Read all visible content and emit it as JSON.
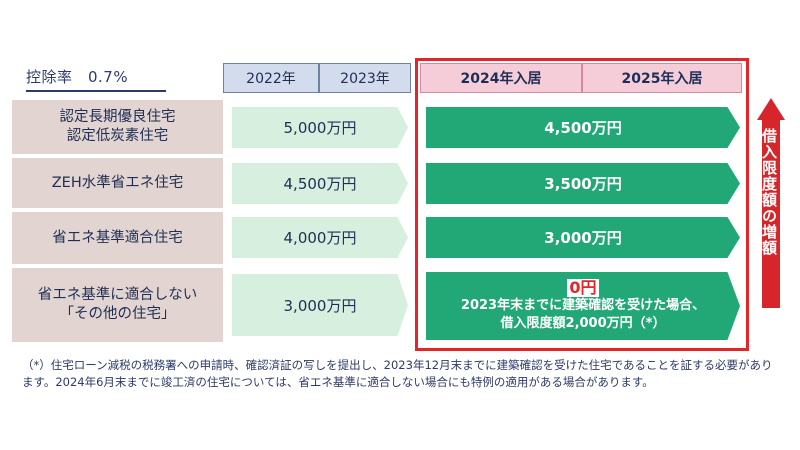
{
  "deduction_rate": "控除率　0.7%",
  "years": [
    "2022年",
    "2023年",
    "2024年入居",
    "2025年入居"
  ],
  "rows": [
    {
      "label": "認定長期優良住宅\n認定低炭素住宅",
      "old_limit": "5,000万円",
      "new_limit": "4,500万円"
    },
    {
      "label": "ZEH水準省エネ住宅",
      "old_limit": "4,500万円",
      "new_limit": "3,500万円"
    },
    {
      "label": "省エネ基準適合住宅",
      "old_limit": "4,000万円",
      "new_limit": "3,000万円"
    },
    {
      "label": "省エネ基準に適合しない\n「その他の住宅」",
      "old_limit": "3,000万円",
      "new_limit": "0円",
      "new_note_1": "2023年末までに建築確認を受けた場合、",
      "new_note_2": "借入限度額2,000万円（*）"
    }
  ],
  "side_label": "借入限度額の増額",
  "footnote": "（*）住宅ローン減税の税務署への申請時、確認済証の写しを提出し、2023年12月末までに建築確認を受けた住宅であることを証する必要があります。2024年6月末までに竣工済の住宅については、省エネ基準に適合しない場合にも特例の適用がある場合があります。",
  "colors": {
    "accent_red": "#e3262a",
    "green": "#22a876",
    "light_green": "#d7efdf",
    "label_bg": "#e2d4d0"
  }
}
